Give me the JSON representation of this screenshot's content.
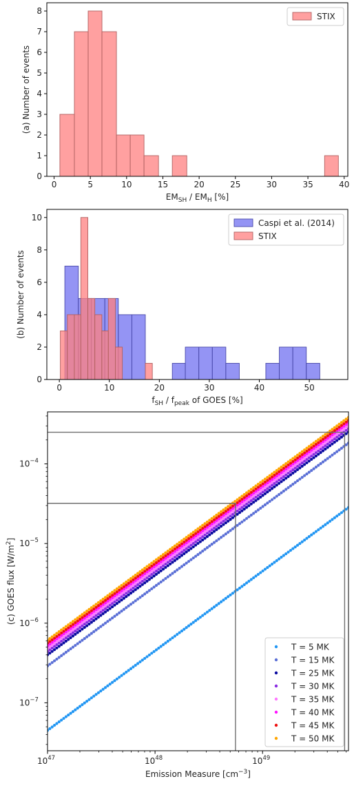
{
  "chart_data": [
    {
      "type": "bar",
      "subtype": "histogram",
      "ylabel": "(a) Number of events",
      "xlabel": "EM",
      "xlabel_parts": {
        "a": "EM",
        "a_sub": "SH",
        "sep": " / EM",
        "b_sub": "H",
        "tail": " [%]"
      },
      "xlim": [
        -1,
        40.5
      ],
      "ylim": [
        0,
        8.4
      ],
      "xticks": [
        0,
        5,
        10,
        15,
        20,
        25,
        30,
        35,
        40
      ],
      "yticks": [
        0,
        1,
        2,
        3,
        4,
        5,
        6,
        7,
        8
      ],
      "legend_position": "top-right",
      "grid": false,
      "series": [
        {
          "name": "STIX",
          "color": "#ff8080",
          "edge": "#b06060",
          "bins": [
            [
              0.8,
              2.8,
              3
            ],
            [
              2.8,
              4.7,
              7
            ],
            [
              4.7,
              6.6,
              8
            ],
            [
              6.6,
              8.6,
              7
            ],
            [
              8.6,
              10.5,
              2
            ],
            [
              10.5,
              12.4,
              2
            ],
            [
              12.4,
              14.4,
              1
            ],
            [
              16.3,
              18.3,
              1
            ],
            [
              37.3,
              39.2,
              1
            ]
          ]
        }
      ]
    },
    {
      "type": "bar",
      "subtype": "histogram",
      "ylabel": "(b) Number of events",
      "xlabel": "f",
      "xlabel_parts": {
        "a": "f",
        "a_sub": "SH",
        "sep": " / f",
        "b_sub": "peak",
        "tail": " of GOES [%]"
      },
      "xlim": [
        -2.5,
        57.7
      ],
      "ylim": [
        0,
        10.5
      ],
      "xticks": [
        0,
        10,
        20,
        30,
        40,
        50
      ],
      "yticks": [
        0,
        2,
        4,
        6,
        8,
        10
      ],
      "legend_position": "top-right",
      "grid": false,
      "series": [
        {
          "name": "Caspi et al. (2014)",
          "color": "#7070f0",
          "edge": "#4848a8",
          "bins": [
            [
              1.1,
              3.8,
              7
            ],
            [
              3.8,
              6.4,
              5
            ],
            [
              6.4,
              9.1,
              5
            ],
            [
              9.1,
              11.8,
              5
            ],
            [
              11.8,
              14.5,
              4
            ],
            [
              14.5,
              17.2,
              4
            ],
            [
              22.6,
              25.2,
              1
            ],
            [
              25.2,
              27.9,
              2
            ],
            [
              27.9,
              30.6,
              2
            ],
            [
              30.6,
              33.3,
              2
            ],
            [
              33.3,
              36.0,
              1
            ],
            [
              41.3,
              44.0,
              1
            ],
            [
              44.0,
              46.7,
              2
            ],
            [
              46.7,
              49.4,
              2
            ],
            [
              49.4,
              52.1,
              1
            ]
          ]
        },
        {
          "name": "STIX",
          "color": "#ff8080",
          "edge": "#b06060",
          "bins": [
            [
              0.2,
              1.6,
              3
            ],
            [
              1.6,
              3.0,
              4
            ],
            [
              3.0,
              4.3,
              4
            ],
            [
              4.3,
              5.7,
              10
            ],
            [
              5.7,
              7.1,
              5
            ],
            [
              7.1,
              8.5,
              4
            ],
            [
              8.5,
              9.8,
              3
            ],
            [
              9.8,
              11.2,
              5
            ],
            [
              11.2,
              12.6,
              2
            ],
            [
              17.2,
              18.6,
              1
            ]
          ]
        }
      ]
    },
    {
      "type": "scatter",
      "xlabel": "Emission Measure",
      "xlabel_parts": {
        "a": "Emission Measure [cm",
        "sup": "−3",
        "tail": "]"
      },
      "ylabel": "(c) GOES flux",
      "ylabel_parts": {
        "a": "(c) GOES flux [W/m",
        "sup": "2",
        "tail": "]"
      },
      "xscale": "log",
      "yscale": "log",
      "xlim": [
        1e+47,
        6.3e+49
      ],
      "ylim": [
        2.5e-08,
        0.00045
      ],
      "xticks": [
        {
          "base": "10",
          "exp": "47",
          "value": 1e+47
        },
        {
          "base": "10",
          "exp": "48",
          "value": 1e+48
        },
        {
          "base": "10",
          "exp": "49",
          "value": 1e+49
        }
      ],
      "yticks": [
        {
          "base": "10",
          "exp": "−7",
          "value": 1e-07
        },
        {
          "base": "10",
          "exp": "−6",
          "value": 1e-06
        },
        {
          "base": "10",
          "exp": "−5",
          "value": 1e-05
        },
        {
          "base": "10",
          "exp": "−4",
          "value": 0.0001
        }
      ],
      "legend_position": "bottom-right",
      "grid": false,
      "series": [
        {
          "name": "T = 5 MK",
          "color": "#2196f3",
          "flux_at_1e47": 4.5e-08
        },
        {
          "name": "T = 15 MK",
          "color": "#5a6fd6",
          "flux_at_1e47": 2.9e-07
        },
        {
          "name": "T = 25 MK",
          "color": "#0a0aa0",
          "flux_at_1e47": 4e-07
        },
        {
          "name": "T = 30 MK",
          "color": "#8a2be2",
          "flux_at_1e47": 4.4e-07
        },
        {
          "name": "T = 35 MK",
          "color": "#ff77ff",
          "flux_at_1e47": 4.8e-07
        },
        {
          "name": "T = 40 MK",
          "color": "#ff10ff",
          "flux_at_1e47": 5.2e-07
        },
        {
          "name": "T = 45 MK",
          "color": "#ee1010",
          "flux_at_1e47": 5.6e-07
        },
        {
          "name": "T = 50 MK",
          "color": "#ffa500",
          "flux_at_1e47": 6.1e-07
        }
      ],
      "reference_lines": [
        {
          "em": 5.6e+48,
          "flux": 3.2e-05
        },
        {
          "em": 5.8e+49,
          "flux": 0.00025
        }
      ]
    }
  ]
}
